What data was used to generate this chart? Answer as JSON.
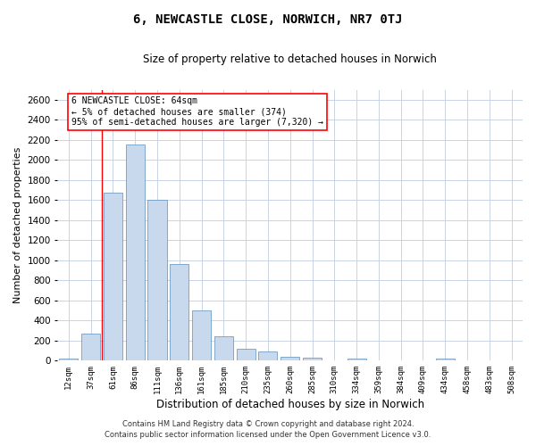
{
  "title": "6, NEWCASTLE CLOSE, NORWICH, NR7 0TJ",
  "subtitle": "Size of property relative to detached houses in Norwich",
  "xlabel": "Distribution of detached houses by size in Norwich",
  "ylabel": "Number of detached properties",
  "categories": [
    "12sqm",
    "37sqm",
    "61sqm",
    "86sqm",
    "111sqm",
    "136sqm",
    "161sqm",
    "185sqm",
    "210sqm",
    "235sqm",
    "260sqm",
    "285sqm",
    "310sqm",
    "334sqm",
    "359sqm",
    "384sqm",
    "409sqm",
    "434sqm",
    "458sqm",
    "483sqm",
    "508sqm"
  ],
  "values": [
    20,
    270,
    1670,
    2150,
    1600,
    960,
    500,
    240,
    115,
    95,
    35,
    30,
    5,
    25,
    5,
    5,
    5,
    20,
    5,
    5,
    5
  ],
  "bar_color": "#c9d9ed",
  "bar_edge_color": "#5b8db8",
  "grid_color": "#c8d4e4",
  "vline_color": "red",
  "vline_x": 1.5,
  "annotation_text": "6 NEWCASTLE CLOSE: 64sqm\n← 5% of detached houses are smaller (374)\n95% of semi-detached houses are larger (7,320) →",
  "annotation_box_color": "white",
  "annotation_box_edge": "red",
  "footnote1": "Contains HM Land Registry data © Crown copyright and database right 2024.",
  "footnote2": "Contains public sector information licensed under the Open Government Licence v3.0.",
  "ylim": [
    0,
    2700
  ],
  "yticks": [
    0,
    200,
    400,
    600,
    800,
    1000,
    1200,
    1400,
    1600,
    1800,
    2000,
    2200,
    2400,
    2600
  ],
  "figsize": [
    6.0,
    5.0
  ],
  "dpi": 100
}
